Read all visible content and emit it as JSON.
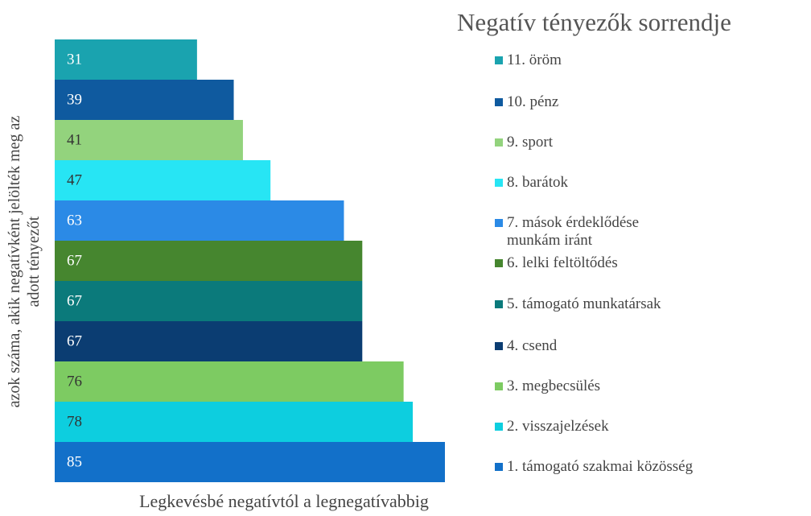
{
  "chart_data": {
    "type": "bar",
    "orientation": "horizontal",
    "title": "Negatív tényezők sorrendje",
    "y_label": "azok száma, akik negatívként jelölték meg az\nadott tényezőt",
    "x_label": "Legkevésbé negatívtól a legnegatívabbig",
    "categories": [
      "11. öröm",
      "10. pénz",
      "9. sport",
      "8. barátok",
      "7. mások érdeklődése\nmunkám iránt",
      "6. lelki feltöltődés",
      "5. támogató munkatársak",
      "4. csend",
      "3. megbecsülés",
      "2. visszajelzések",
      "1. támogató szakmai közösség"
    ],
    "values": [
      31,
      39,
      41,
      47,
      63,
      67,
      67,
      67,
      76,
      78,
      85
    ],
    "colors": [
      "#1aa3af",
      "#0f5a9f",
      "#93d37d",
      "#27e5f4",
      "#2b8ae6",
      "#46862f",
      "#0b7a7b",
      "#0b3d72",
      "#7dcb62",
      "#0dcedf",
      "#1270c9"
    ]
  }
}
